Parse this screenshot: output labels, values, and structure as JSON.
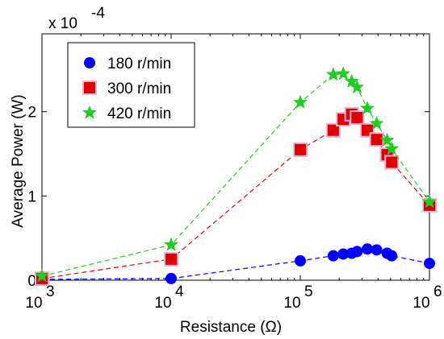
{
  "chart_data": {
    "type": "line",
    "x_scale": "log",
    "xlim": [
      1000,
      1000000
    ],
    "ylim": [
      0,
      0.0002924
    ],
    "y_multiplier": "x 10",
    "y_multiplier_exponent": "-4",
    "xlabel": "Resistance (Ω)",
    "ylabel": "Average Power (W)",
    "x_ticks": [
      {
        "base": "10",
        "exp": "3",
        "value": 1000
      },
      {
        "base": "10",
        "exp": "4",
        "value": 10000
      },
      {
        "base": "10",
        "exp": "5",
        "value": 100000
      },
      {
        "base": "10",
        "exp": "6",
        "value": 1000000
      }
    ],
    "y_ticks": [
      {
        "label": "0",
        "value": 0
      },
      {
        "label": "1",
        "value": 0.0001
      },
      {
        "label": "2",
        "value": 0.0002
      }
    ],
    "grid": false,
    "legend_position": "top-left",
    "series": [
      {
        "name": "180 r/min",
        "color": "#0000ff",
        "marker": "circle",
        "x": [
          1000,
          10000,
          100000,
          180000,
          215000,
          250000,
          275000,
          330000,
          390000,
          470000,
          510000,
          1000000
        ],
        "y": [
          1e-06,
          2e-06,
          2.3e-05,
          2.9e-05,
          3.1e-05,
          3.2e-05,
          3.4e-05,
          3.7e-05,
          3.6e-05,
          3.2e-05,
          2.9e-05,
          2e-05
        ]
      },
      {
        "name": "300 r/min",
        "color": "#e00000",
        "marker": "square",
        "x": [
          1000,
          10000,
          100000,
          180000,
          215000,
          250000,
          275000,
          330000,
          390000,
          470000,
          510000,
          1000000
        ],
        "y": [
          2e-06,
          2.5e-05,
          0.000155,
          0.000178,
          0.000191,
          0.000197,
          0.000193,
          0.000178,
          0.000167,
          0.000149,
          0.00014,
          8.9e-05
        ]
      },
      {
        "name": "420 r/min",
        "color": "#22cc22",
        "marker": "star",
        "x": [
          1000,
          10000,
          100000,
          180000,
          215000,
          250000,
          275000,
          330000,
          390000,
          470000,
          510000,
          1000000
        ],
        "y": [
          5e-06,
          4.2e-05,
          0.000211,
          0.000244,
          0.000245,
          0.000236,
          0.000229,
          0.000204,
          0.000186,
          0.000166,
          0.000156,
          9.3e-05
        ]
      }
    ]
  }
}
